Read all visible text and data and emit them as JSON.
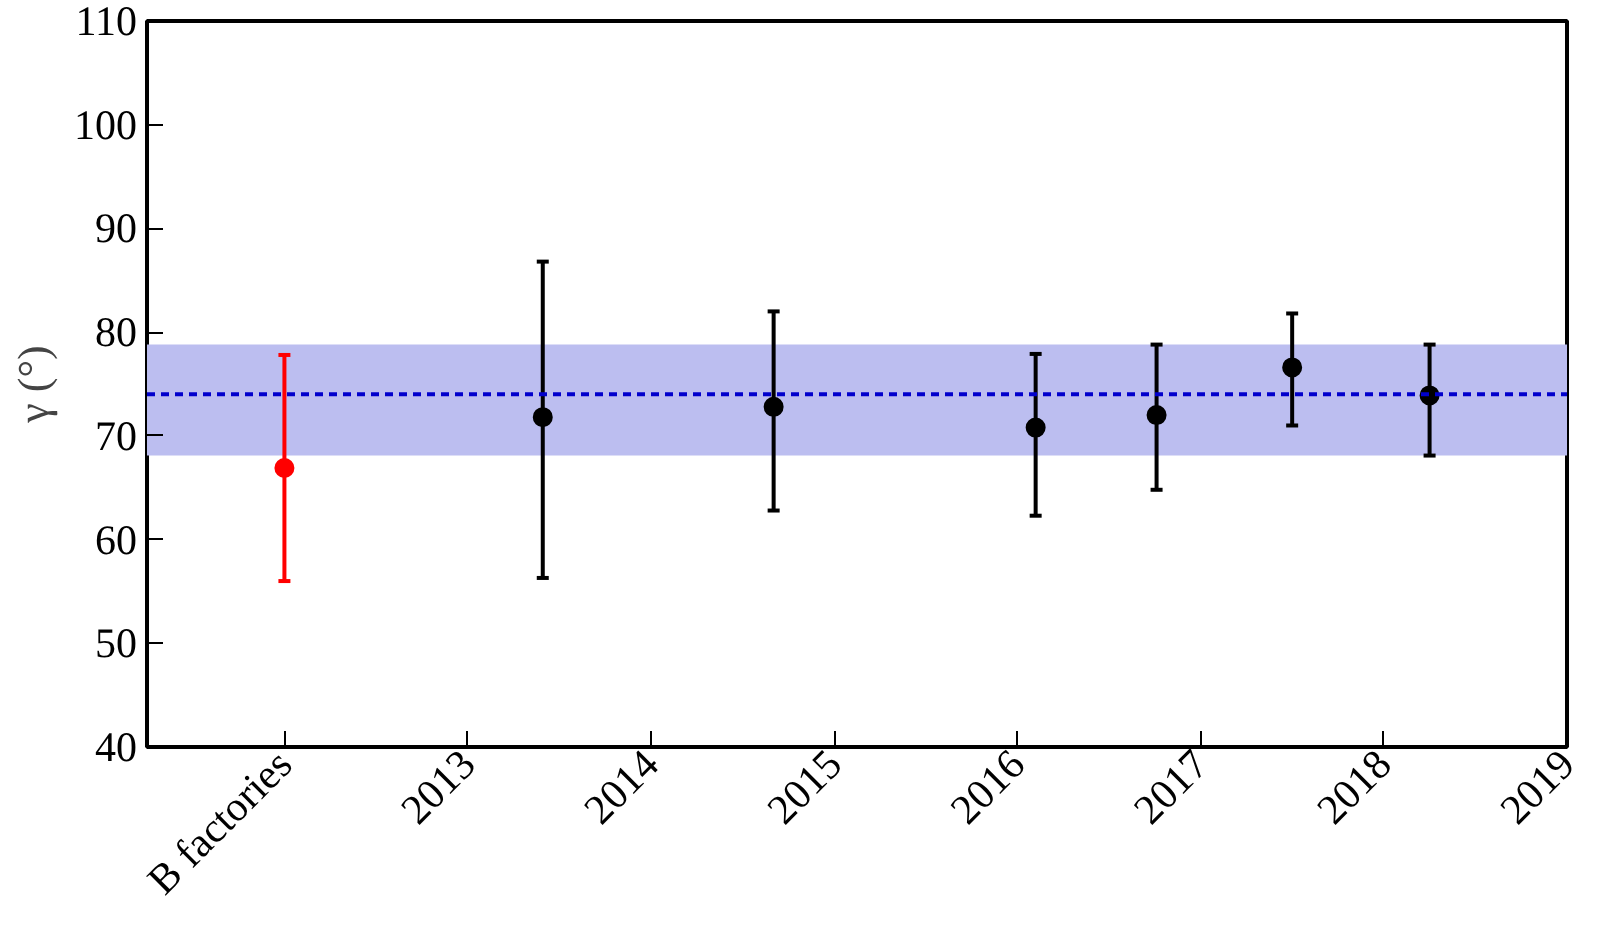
{
  "chart_data": {
    "type": "scatter",
    "ylabel": "γ (°)",
    "xlim": [
      2011.25,
      2019
    ],
    "xticks": [
      {
        "value": 2012,
        "label": "B factories"
      },
      2013,
      2014,
      2015,
      2016,
      2017,
      2018,
      2019
    ],
    "ylim": [
      40,
      110
    ],
    "yticks": [
      40,
      50,
      60,
      70,
      80,
      90,
      100,
      110
    ],
    "grid": false,
    "marker": "circle",
    "series": [
      {
        "color": "#ff0000",
        "x": [
          2012
        ],
        "values": [
          66.9
        ],
        "errors": [
          [
            56.0,
            77.8
          ]
        ]
      },
      {
        "color": "#000000",
        "x": [
          2013.41,
          2014.67,
          2016.1,
          2016.76,
          2017.5,
          2018.25
        ],
        "values": [
          71.8,
          72.8,
          70.8,
          72.0,
          76.6,
          73.9
        ],
        "errors": [
          [
            56.3,
            86.8
          ],
          [
            62.8,
            82.0
          ],
          [
            62.3,
            77.9
          ],
          [
            64.8,
            78.8
          ],
          [
            71.0,
            81.8
          ],
          [
            68.1,
            78.8
          ]
        ]
      }
    ],
    "bands": [
      {
        "axis": "y",
        "from": 68.1,
        "to": 78.8,
        "color": "#bcbef0"
      }
    ],
    "ref_lines": [
      {
        "axis": "y",
        "value": 74,
        "color": "#0000cc",
        "line_style": "dotted"
      }
    ]
  }
}
